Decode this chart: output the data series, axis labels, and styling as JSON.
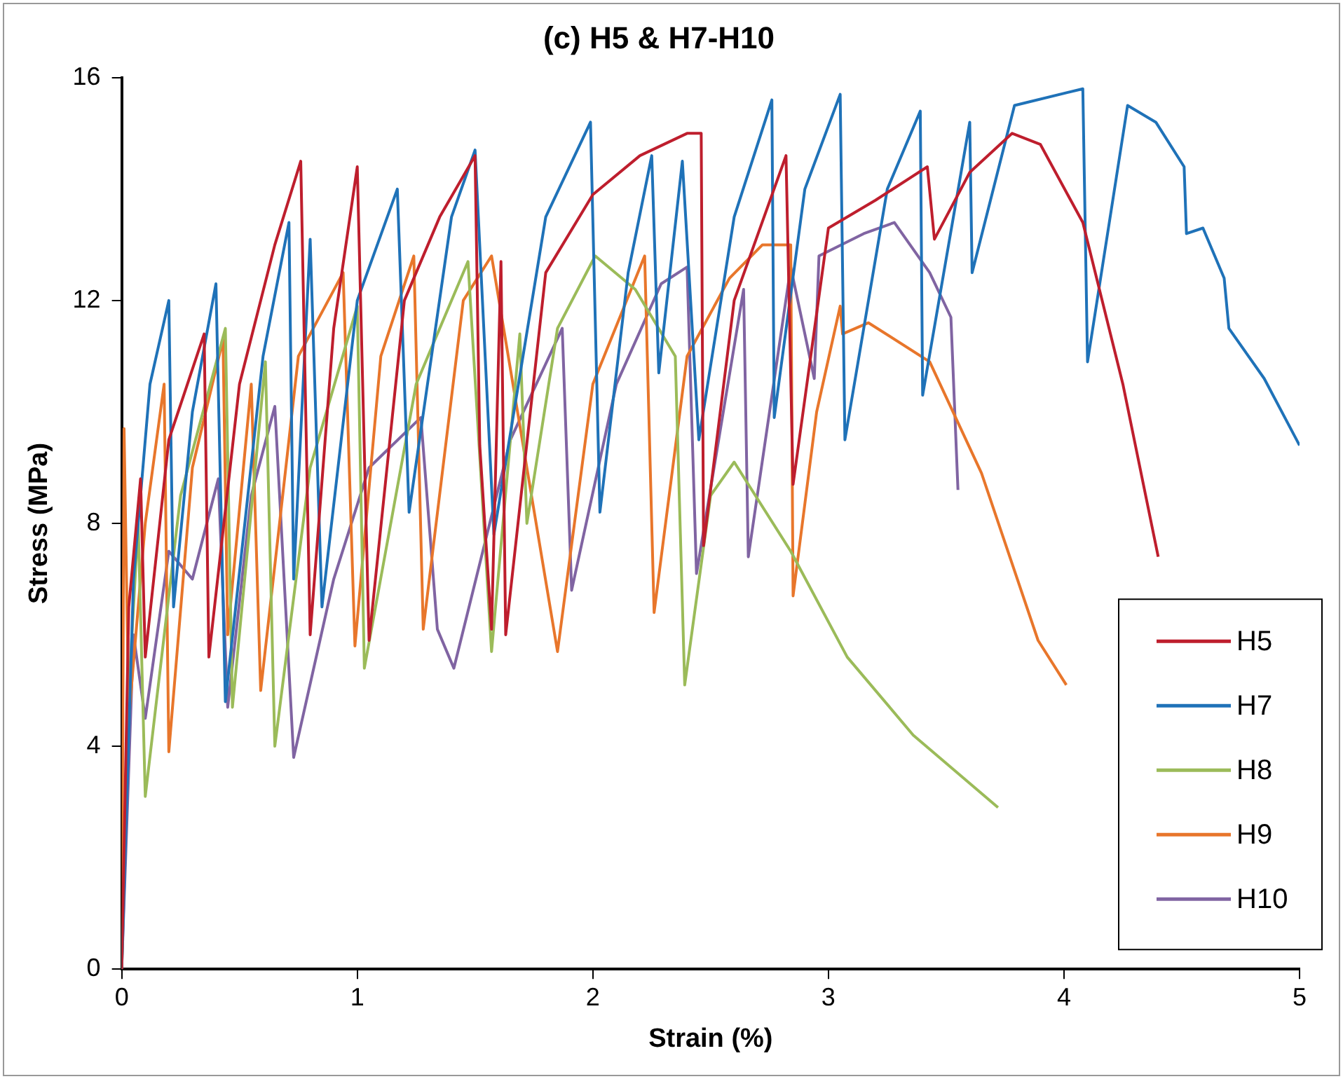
{
  "chart_data": {
    "type": "line",
    "title": "(c) H5 & H7-H10",
    "xlabel": "Strain (%)",
    "ylabel": "Stress (MPa)",
    "xlim": [
      0,
      5
    ],
    "ylim": [
      0,
      16
    ],
    "xticks": [
      0,
      1,
      2,
      3,
      4,
      5
    ],
    "yticks": [
      0,
      4,
      8,
      12,
      16
    ],
    "grid": false,
    "legend": "bottom right",
    "marker": "none",
    "line_style": "solid",
    "series": [
      {
        "name": "H5",
        "color": "#be1e2d",
        "x": [
          0,
          0.03,
          0.08,
          0.1,
          0.2,
          0.35,
          0.37,
          0.5,
          0.65,
          0.76,
          0.8,
          0.9,
          1.0,
          1.05,
          1.2,
          1.35,
          1.5,
          1.52,
          1.57,
          1.61,
          1.63,
          1.8,
          2.0,
          2.2,
          2.4,
          2.46,
          2.47,
          2.6,
          2.82,
          2.85,
          3.0,
          3.2,
          3.42,
          3.45,
          3.6,
          3.78,
          3.9,
          4.08,
          4.25,
          4.4
        ],
        "values": [
          0,
          6.5,
          8.8,
          5.6,
          9.5,
          11.4,
          5.6,
          10.5,
          13,
          14.5,
          6,
          11.5,
          14.4,
          5.9,
          12,
          13.5,
          14.6,
          9.4,
          6.1,
          12.7,
          6,
          12.5,
          13.9,
          14.6,
          15,
          15,
          7.6,
          12,
          14.6,
          8.7,
          13.3,
          13.8,
          14.4,
          13.1,
          14.3,
          15,
          14.8,
          13.4,
          10.5,
          7.4
        ]
      },
      {
        "name": "H7",
        "color": "#1f72b8",
        "x": [
          0,
          0.05,
          0.12,
          0.2,
          0.22,
          0.3,
          0.4,
          0.44,
          0.6,
          0.71,
          0.73,
          0.8,
          0.85,
          1.0,
          1.17,
          1.22,
          1.4,
          1.5,
          1.58,
          1.8,
          1.99,
          2.03,
          2.15,
          2.25,
          2.28,
          2.38,
          2.45,
          2.6,
          2.76,
          2.77,
          2.9,
          3.05,
          3.07,
          3.25,
          3.39,
          3.4,
          3.6,
          3.61,
          3.79,
          4.08,
          4.1,
          4.27,
          4.39,
          4.51,
          4.52,
          4.59,
          4.68,
          4.7,
          4.85,
          5.0
        ],
        "values": [
          0,
          7,
          10.5,
          12,
          6.5,
          10,
          12.3,
          4.8,
          11,
          13.4,
          7,
          13.1,
          6.5,
          12,
          14,
          8.2,
          13.5,
          14.7,
          7.8,
          13.5,
          15.2,
          8.2,
          12.5,
          14.6,
          10.7,
          14.5,
          9.5,
          13.5,
          15.6,
          9.9,
          14,
          15.7,
          9.5,
          14,
          15.4,
          10.3,
          15.2,
          12.5,
          15.5,
          15.8,
          10.9,
          15.5,
          15.2,
          14.4,
          13.2,
          13.3,
          12.4,
          11.5,
          10.6,
          9.4
        ]
      },
      {
        "name": "H8",
        "color": "#9bbb59",
        "x": [
          0,
          0.03,
          0.07,
          0.1,
          0.25,
          0.44,
          0.47,
          0.61,
          0.65,
          0.8,
          1.0,
          1.03,
          1.25,
          1.47,
          1.57,
          1.69,
          1.72,
          1.85,
          2.01,
          2.18,
          2.35,
          2.39,
          2.5,
          2.6,
          2.84,
          3.08,
          3.36,
          3.72
        ],
        "values": [
          0,
          5,
          8,
          3.1,
          8.5,
          11.5,
          4.7,
          10.9,
          4.0,
          9,
          11.9,
          5.4,
          10.5,
          12.7,
          5.7,
          11.4,
          8,
          11.5,
          12.8,
          12.2,
          11,
          5.1,
          8.5,
          9.1,
          7.5,
          5.6,
          4.2,
          2.9
        ]
      },
      {
        "name": "H9",
        "color": "#e8762b",
        "x": [
          0,
          0.01,
          0.03,
          0.1,
          0.18,
          0.2,
          0.3,
          0.43,
          0.45,
          0.55,
          0.59,
          0.75,
          0.94,
          0.99,
          1.1,
          1.24,
          1.28,
          1.45,
          1.57,
          1.85,
          2.0,
          2.22,
          2.26,
          2.4,
          2.58,
          2.72,
          2.84,
          2.85,
          2.95,
          3.05,
          3.06,
          3.17,
          3.43,
          3.65,
          3.89,
          4.01
        ],
        "values": [
          0,
          9.7,
          4.5,
          8,
          10.5,
          3.9,
          9,
          11.3,
          6,
          10.5,
          5.0,
          11,
          12.5,
          5.8,
          11,
          12.8,
          6.1,
          12,
          12.8,
          5.7,
          10.5,
          12.8,
          6.4,
          11,
          12.4,
          13.0,
          13,
          6.7,
          10,
          11.9,
          11.4,
          11.6,
          10.9,
          8.9,
          5.9,
          5.1
        ]
      },
      {
        "name": "H10",
        "color": "#8064a2",
        "x": [
          0,
          0.05,
          0.1,
          0.2,
          0.3,
          0.41,
          0.45,
          0.55,
          0.65,
          0.73,
          0.9,
          1.05,
          1.27,
          1.34,
          1.41,
          1.65,
          1.87,
          1.91,
          2.1,
          2.29,
          2.4,
          2.44,
          2.64,
          2.66,
          2.84,
          2.94,
          2.96,
          3.15,
          3.28,
          3.43,
          3.52,
          3.55
        ],
        "values": [
          0,
          6,
          4.5,
          7.5,
          7,
          8.8,
          4.7,
          8.5,
          10.1,
          3.8,
          7,
          9.0,
          9.9,
          6.1,
          5.4,
          9.5,
          11.5,
          6.8,
          10.5,
          12.3,
          12.6,
          7.1,
          12.2,
          7.4,
          12.6,
          10.6,
          12.8,
          13.2,
          13.4,
          12.5,
          11.7,
          8.6
        ]
      }
    ]
  }
}
